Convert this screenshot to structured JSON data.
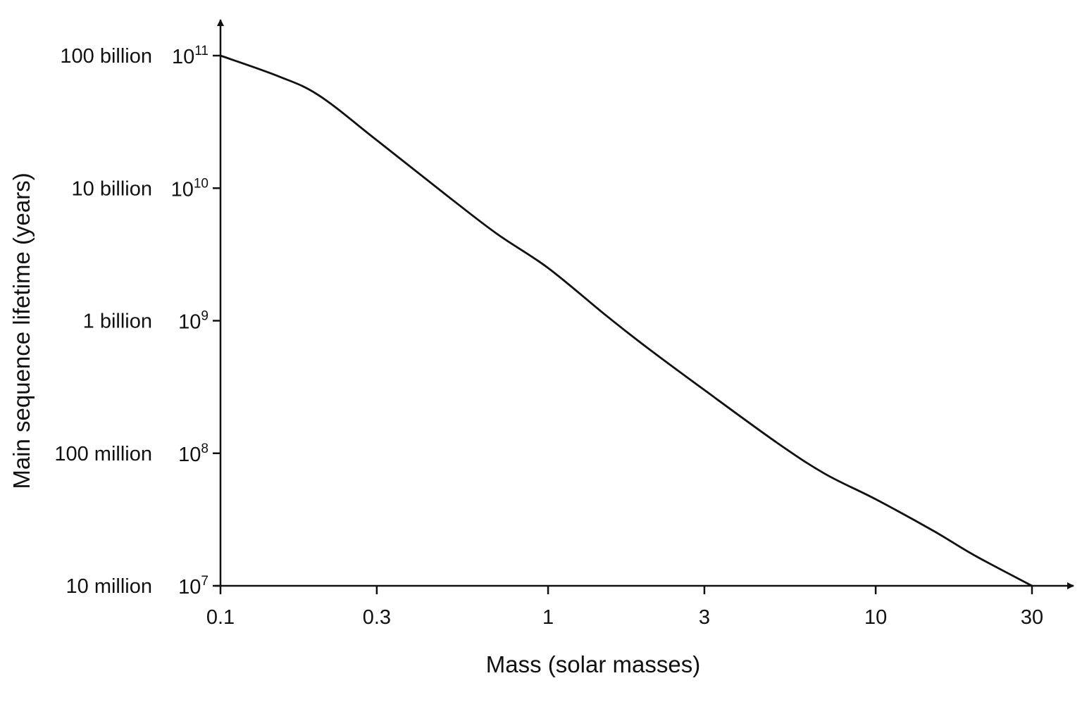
{
  "chart_data": {
    "type": "line",
    "title": "",
    "xlabel": "Mass (solar masses)",
    "ylabel": "Main sequence lifetime (years)",
    "x_scale": "log",
    "y_scale": "log",
    "xlim": [
      0.1,
      30
    ],
    "ylim": [
      10000000,
      100000000000
    ],
    "grid": false,
    "legend": "none",
    "line_color": "#111111",
    "x_ticks": [
      {
        "value": 0.1,
        "label": "0.1"
      },
      {
        "value": 0.3,
        "label": "0.3"
      },
      {
        "value": 1,
        "label": "1"
      },
      {
        "value": 3,
        "label": "3"
      },
      {
        "value": 10,
        "label": "10"
      },
      {
        "value": 30,
        "label": "30"
      }
    ],
    "y_ticks": [
      {
        "value": 100000000000,
        "base": "10",
        "exp": "11",
        "word": "100 billion"
      },
      {
        "value": 10000000000,
        "base": "10",
        "exp": "10",
        "word": "10 billion"
      },
      {
        "value": 1000000000,
        "base": "10",
        "exp": "9",
        "word": "1 billion"
      },
      {
        "value": 100000000,
        "base": "10",
        "exp": "8",
        "word": "100 million"
      },
      {
        "value": 10000000,
        "base": "10",
        "exp": "7",
        "word": "10 million"
      }
    ],
    "series": [
      {
        "x": [
          0.1,
          0.15,
          0.2,
          0.3,
          0.5,
          0.7,
          1,
          1.5,
          2,
          3,
          5,
          7,
          10,
          15,
          20,
          30
        ],
        "y": [
          100000000000,
          70000000000,
          50000000000,
          23000000000,
          8500000000,
          4500000000,
          2500000000,
          1100000000,
          630000000,
          300000000,
          120000000,
          70000000,
          45000000,
          26000000,
          17000000,
          10000000
        ]
      }
    ]
  }
}
